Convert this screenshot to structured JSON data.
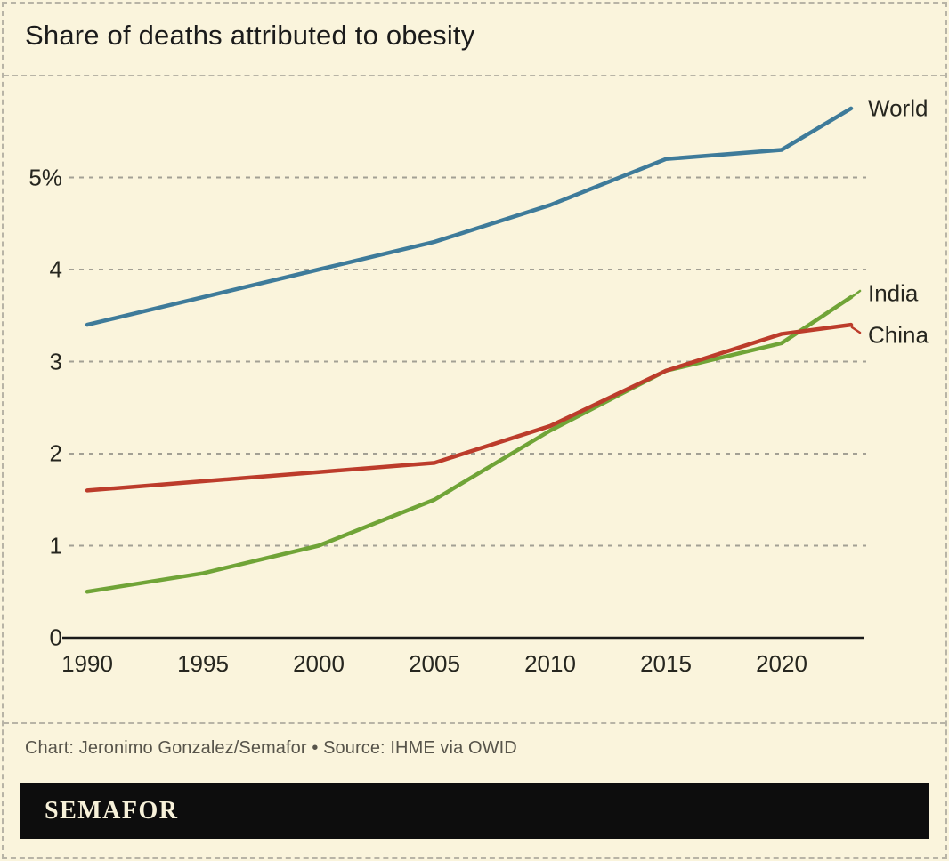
{
  "page": {
    "title": "Share of deaths attributed to obesity",
    "footer_credit": "Chart: Jeronimo Gonzalez/Semafor • Source: IHME via OWID",
    "brand_logo": "SEMAFOR"
  },
  "colors": {
    "background": "#faf4dc",
    "border_dash": "#b8b4a6",
    "gridline": "#a3a094",
    "axis": "#1a1a1a",
    "tick_text": "#26261f",
    "footer_text": "#57544a",
    "banner_bg": "#0d0d0d",
    "banner_text": "#f7f1d9"
  },
  "chart_data": {
    "type": "line",
    "title": "Share of deaths attributed to obesity",
    "x": [
      1990,
      1995,
      2000,
      2005,
      2010,
      2015,
      2020,
      2023
    ],
    "series": [
      {
        "name": "World",
        "color": "#3e7b9a",
        "values": [
          3.4,
          3.7,
          4.0,
          4.3,
          4.7,
          5.2,
          5.3,
          5.75
        ]
      },
      {
        "name": "India",
        "color": "#70a437",
        "values": [
          0.5,
          0.7,
          1.0,
          1.5,
          2.25,
          2.9,
          3.2,
          3.7
        ]
      },
      {
        "name": "China",
        "color": "#bc3c2b",
        "values": [
          1.6,
          1.7,
          1.8,
          1.9,
          2.3,
          2.9,
          3.3,
          3.4
        ]
      }
    ],
    "y_ticks": [
      "0",
      "1",
      "2",
      "3",
      "4",
      "5%"
    ],
    "x_ticks": [
      "1990",
      "1995",
      "2000",
      "2005",
      "2010",
      "2015",
      "2020"
    ],
    "ylim": [
      0,
      6
    ],
    "xlim": [
      1990,
      2023.5
    ],
    "grid": "horizontal-dashed",
    "legend_position": "right-of-line-ends",
    "unit": "percent"
  }
}
